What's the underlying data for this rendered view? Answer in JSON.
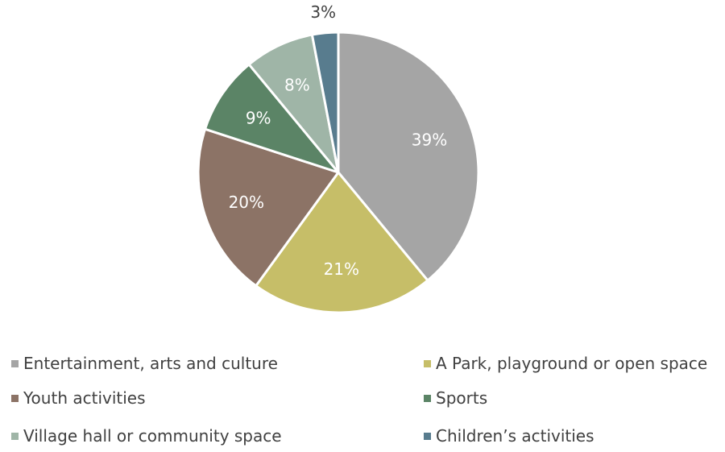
{
  "chart_data": {
    "type": "pie",
    "categories": [
      "Entertainment, arts and culture",
      "A Park, playground or open space",
      "Youth activities",
      "Sports",
      "Village hall or community space",
      "Children’s activities"
    ],
    "values": [
      39,
      21,
      20,
      9,
      8,
      3
    ],
    "labels": [
      "39%",
      "21%",
      "20%",
      "9%",
      "8%",
      "3%"
    ],
    "colors": [
      "#a5a5a5",
      "#c6be68",
      "#8c7366",
      "#5b8466",
      "#9fb5a7",
      "#587c8e"
    ],
    "label_colors": [
      "#ffffff",
      "#ffffff",
      "#ffffff",
      "#ffffff",
      "#ffffff",
      "#404040"
    ],
    "legend_position": "bottom"
  }
}
